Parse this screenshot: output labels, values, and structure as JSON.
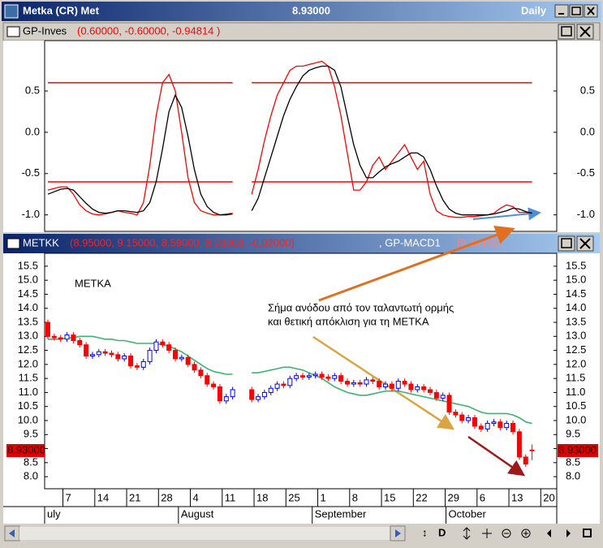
{
  "window": {
    "title": "Metka (CR) Met",
    "price": "8.93000",
    "period": "Daily"
  },
  "x_axis": {
    "ticks": [
      {
        "value": 3,
        "label": "7"
      },
      {
        "value": 8,
        "label": "14"
      },
      {
        "value": 13,
        "label": "21"
      },
      {
        "value": 18,
        "label": "28"
      },
      {
        "value": 23,
        "label": "4"
      },
      {
        "value": 28,
        "label": "11"
      },
      {
        "value": 33,
        "label": "18"
      },
      {
        "value": 38,
        "label": "25"
      },
      {
        "value": 43,
        "label": "1"
      },
      {
        "value": 48,
        "label": "8"
      },
      {
        "value": 53,
        "label": "15"
      },
      {
        "value": 58,
        "label": "22"
      },
      {
        "value": 63,
        "label": "29"
      },
      {
        "value": 68,
        "label": "6"
      },
      {
        "value": 73,
        "label": "13"
      },
      {
        "value": 78,
        "label": "20"
      }
    ],
    "months": [
      {
        "value": 0,
        "label": "uly"
      },
      {
        "value": 21,
        "label": "August"
      },
      {
        "value": 42,
        "label": "September"
      },
      {
        "value": 63,
        "label": "October"
      }
    ]
  },
  "oscillator": {
    "name": "GP-Inves",
    "params": "(0.60000, -0.60000, -0.94814 )",
    "ylim": [
      -1.2,
      1.11
    ],
    "yticks": [
      0.5,
      {
        "value": 0,
        "label": "0.0"
      },
      -0.5,
      {
        "value": -1,
        "label": "-1.0"
      }
    ],
    "levels": [
      0.6,
      -0.6
    ],
    "level_color": "#ff0000",
    "lines": [
      {
        "color": "#ff0000",
        "values": [
          -0.7,
          -0.68,
          -0.66,
          -0.66,
          -0.75,
          -0.88,
          -0.95,
          -0.99,
          -1.0,
          -0.99,
          -0.97,
          -0.95,
          -0.97,
          -0.98,
          -1.0,
          -0.85,
          -0.4,
          0.2,
          0.6,
          0.7,
          0.5,
          0.0,
          -0.55,
          -0.85,
          -0.95,
          -0.98,
          -1.0,
          -1.0,
          -0.99,
          -0.98,
          null,
          null,
          -0.75,
          -0.45,
          -0.1,
          0.2,
          0.45,
          0.6,
          0.75,
          0.8,
          0.8,
          0.82,
          0.84,
          0.86,
          0.8,
          0.55,
          0.2,
          -0.25,
          -0.7,
          -0.7,
          -0.6,
          -0.4,
          -0.3,
          -0.45,
          -0.35,
          -0.25,
          -0.15,
          -0.3,
          -0.45,
          -0.35,
          -0.75,
          -0.95,
          -1.0,
          -1.02,
          -1.03,
          -1.03,
          -1.02,
          -1.02,
          -1.01,
          -1.0,
          -0.98,
          -0.92,
          -0.88,
          -0.9,
          -0.97,
          -0.97,
          -0.98
        ]
      },
      {
        "color": "#000000",
        "values": [
          -0.75,
          -0.72,
          -0.69,
          -0.68,
          -0.7,
          -0.78,
          -0.86,
          -0.93,
          -0.97,
          -0.98,
          -0.97,
          -0.95,
          -0.95,
          -0.96,
          -0.97,
          -0.95,
          -0.85,
          -0.6,
          -0.2,
          0.25,
          0.45,
          0.3,
          -0.05,
          -0.45,
          -0.75,
          -0.9,
          -0.97,
          -1.0,
          -1.0,
          -0.99,
          null,
          null,
          -0.95,
          -0.8,
          -0.55,
          -0.3,
          -0.05,
          0.2,
          0.4,
          0.55,
          0.68,
          0.75,
          0.78,
          0.8,
          0.8,
          0.75,
          0.55,
          0.2,
          -0.15,
          -0.4,
          -0.55,
          -0.55,
          -0.48,
          -0.42,
          -0.38,
          -0.35,
          -0.3,
          -0.25,
          -0.25,
          -0.3,
          -0.45,
          -0.65,
          -0.82,
          -0.93,
          -0.98,
          -1.0,
          -1.0,
          -1.0,
          -1.0,
          -1.0,
          -0.99,
          -0.97,
          -0.95,
          -0.92,
          -0.93,
          -0.96,
          -0.98
        ]
      }
    ]
  },
  "price": {
    "symbol": "METKK",
    "ohlc": "(8.95000, 9.15000, 8.59000, 8.93000, -0.02000)",
    "indicator": ", GP-MACD1",
    "indicator_value": "(9.32182)",
    "ylim": [
      7.57,
      15.96
    ],
    "yticks": [
      15.5,
      {
        "value": 15,
        "label": "15.0"
      },
      14.5,
      {
        "value": 14,
        "label": "14.0"
      },
      13.5,
      {
        "value": 13,
        "label": "13.0"
      },
      12.5,
      {
        "value": 12,
        "label": "12.0"
      },
      11.5,
      {
        "value": 11,
        "label": "11.0"
      },
      10.5,
      {
        "value": 10,
        "label": "10.0"
      },
      9.5,
      {
        "value": 9,
        "label": "9.0"
      },
      8.5,
      {
        "value": 8,
        "label": "8.0"
      }
    ],
    "up_color": "#0000ff",
    "down_color": "#ff0000",
    "open": [
      13.5,
      13.0,
      12.95,
      12.9,
      13.05,
      12.85,
      12.7,
      12.3,
      12.35,
      12.45,
      12.4,
      12.35,
      12.2,
      12.3,
      11.95,
      11.9,
      12.1,
      12.5,
      12.8,
      12.7,
      12.5,
      12.2,
      12.25,
      12.0,
      11.8,
      11.6,
      11.3,
      11.2,
      10.7,
      10.85,
      null,
      null,
      11.1,
      10.75,
      10.85,
      11.0,
      11.15,
      11.3,
      11.25,
      11.5,
      11.6,
      11.55,
      11.6,
      11.65,
      11.55,
      11.5,
      11.6,
      11.4,
      11.3,
      11.35,
      11.3,
      11.45,
      11.4,
      11.2,
      11.3,
      11.15,
      11.4,
      11.3,
      11.1,
      11.2,
      11.1,
      11.0,
      10.8,
      10.9,
      10.3,
      10.2,
      10.0,
      10.1,
      9.8,
      9.7,
      9.9,
      9.95,
      9.75,
      9.9,
      9.6,
      8.7,
      8.95
    ],
    "high": [
      13.6,
      13.1,
      13.05,
      13.15,
      13.15,
      12.95,
      12.8,
      12.45,
      12.55,
      12.55,
      12.5,
      12.45,
      12.4,
      12.4,
      12.05,
      12.2,
      12.6,
      12.9,
      12.9,
      12.8,
      12.6,
      12.35,
      12.35,
      12.1,
      11.9,
      11.7,
      11.4,
      11.3,
      10.95,
      11.2,
      null,
      null,
      11.2,
      10.95,
      11.1,
      11.25,
      11.4,
      11.4,
      11.6,
      11.7,
      11.7,
      11.7,
      11.75,
      11.75,
      11.65,
      11.7,
      11.7,
      11.5,
      11.45,
      11.45,
      11.55,
      11.55,
      11.5,
      11.4,
      11.4,
      11.5,
      11.5,
      11.4,
      11.3,
      11.3,
      11.2,
      11.1,
      11.0,
      11.0,
      10.4,
      10.3,
      10.2,
      10.2,
      9.9,
      10.0,
      10.05,
      10.05,
      10.0,
      10.0,
      9.7,
      8.8,
      9.15
    ],
    "low": [
      12.9,
      12.85,
      12.8,
      12.8,
      12.75,
      12.6,
      12.2,
      12.2,
      12.25,
      12.3,
      12.25,
      12.1,
      12.1,
      11.85,
      11.8,
      11.8,
      12.0,
      12.4,
      12.6,
      12.4,
      12.1,
      12.1,
      11.9,
      11.7,
      11.5,
      11.2,
      11.1,
      10.6,
      10.6,
      10.75,
      null,
      null,
      10.65,
      10.65,
      10.75,
      10.9,
      11.05,
      11.15,
      11.15,
      11.4,
      11.45,
      11.45,
      11.5,
      11.45,
      11.4,
      11.4,
      11.3,
      11.2,
      11.2,
      11.2,
      11.2,
      11.3,
      11.1,
      11.1,
      11.05,
      11.05,
      11.2,
      11.0,
      11.0,
      11.0,
      10.9,
      10.7,
      10.7,
      10.2,
      10.1,
      9.9,
      9.9,
      9.7,
      9.6,
      9.6,
      9.8,
      9.65,
      9.65,
      9.5,
      8.6,
      8.35,
      8.59
    ],
    "close": [
      13.0,
      12.95,
      12.9,
      13.05,
      12.85,
      12.7,
      12.3,
      12.35,
      12.45,
      12.4,
      12.35,
      12.2,
      12.3,
      11.95,
      11.9,
      12.1,
      12.5,
      12.8,
      12.7,
      12.5,
      12.2,
      12.25,
      12.0,
      11.8,
      11.6,
      11.3,
      11.2,
      10.7,
      10.85,
      11.1,
      null,
      null,
      10.75,
      10.85,
      11.0,
      11.15,
      11.3,
      11.25,
      11.5,
      11.6,
      11.55,
      11.6,
      11.65,
      11.55,
      11.5,
      11.6,
      11.4,
      11.3,
      11.35,
      11.3,
      11.45,
      11.4,
      11.2,
      11.3,
      11.15,
      11.4,
      11.3,
      11.1,
      11.2,
      11.1,
      11.0,
      10.8,
      10.9,
      10.3,
      10.2,
      10.0,
      10.1,
      9.8,
      9.7,
      9.9,
      9.95,
      9.75,
      9.9,
      9.6,
      8.7,
      8.45,
      8.93
    ],
    "ma": {
      "color": "#3cb371",
      "values": [
        12.9,
        12.9,
        12.9,
        12.95,
        12.95,
        13.0,
        13.0,
        13.0,
        12.95,
        12.9,
        12.9,
        12.85,
        12.85,
        12.8,
        12.75,
        12.75,
        12.75,
        12.75,
        12.7,
        12.65,
        12.55,
        12.45,
        12.3,
        12.15,
        12.0,
        11.85,
        11.75,
        11.7,
        11.65,
        11.65,
        null,
        null,
        11.7,
        11.7,
        11.75,
        11.8,
        11.85,
        11.9,
        11.9,
        11.85,
        11.8,
        11.7,
        11.6,
        11.5,
        11.35,
        11.2,
        11.1,
        11.0,
        10.95,
        10.9,
        10.9,
        10.95,
        11.0,
        11.05,
        11.05,
        11.05,
        11.0,
        10.95,
        10.9,
        10.85,
        10.8,
        10.75,
        10.7,
        10.65,
        10.6,
        10.55,
        10.5,
        10.4,
        10.3,
        10.25,
        10.25,
        10.25,
        10.25,
        10.2,
        10.1,
        9.95,
        9.9
      ]
    },
    "last": {
      "value": 8.93,
      "label": "8.93000"
    },
    "annotations": {
      "symbol": "METKA",
      "line1": "Σήμα ανόδου από τον ταλαντωτή ορμής",
      "line2": "και θετική απόκλιση για τη METKA"
    }
  },
  "toolbar": {
    "date_button": "D"
  }
}
